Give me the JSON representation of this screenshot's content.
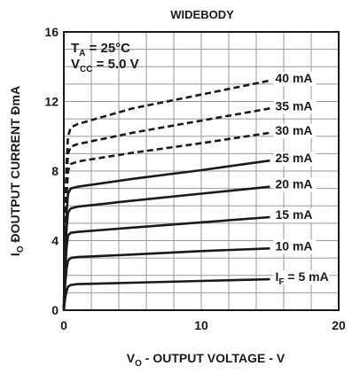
{
  "chart_data": {
    "type": "line",
    "title": "WIDEBODY",
    "xlabel": {
      "main": "V",
      "sub": "O",
      "rest": " -  OUTPUT VOLTAGE - V"
    },
    "ylabel": {
      "main": "I",
      "sub": "O",
      "rest": " ĐOUTPUT CURRENT ĐmA"
    },
    "xlim": [
      0,
      20
    ],
    "ylim": [
      0,
      16
    ],
    "xticks": [
      0,
      10,
      20
    ],
    "yticks": [
      0,
      4,
      8,
      12,
      16
    ],
    "grid": true,
    "conditions": [
      {
        "main": "T",
        "sub": "A",
        "rest": " = 25°C"
      },
      {
        "main": "V",
        "sub": "CC",
        "rest": " = 5.0 V"
      }
    ],
    "series": [
      {
        "name": "I",
        "label_sub": "F",
        "label_rest": " = 5 mA",
        "style": "solid",
        "x": [
          0,
          0.1,
          0.2,
          0.3,
          0.5,
          1,
          5,
          10,
          15
        ],
        "y": [
          0,
          0.7,
          1.1,
          1.35,
          1.45,
          1.5,
          1.58,
          1.68,
          1.78
        ]
      },
      {
        "name": "10 mA",
        "style": "solid",
        "x": [
          0,
          0.1,
          0.2,
          0.3,
          0.5,
          1,
          5,
          10,
          15
        ],
        "y": [
          0,
          1.5,
          2.4,
          2.85,
          3.0,
          3.05,
          3.2,
          3.4,
          3.55
        ]
      },
      {
        "name": "15 mA",
        "style": "solid",
        "x": [
          0,
          0.1,
          0.2,
          0.3,
          0.5,
          1,
          5,
          10,
          15
        ],
        "y": [
          0,
          2.3,
          3.6,
          4.3,
          4.45,
          4.5,
          4.75,
          5.05,
          5.35
        ]
      },
      {
        "name": "20 mA",
        "style": "solid",
        "x": [
          0,
          0.1,
          0.2,
          0.3,
          0.5,
          1,
          5,
          10,
          15
        ],
        "y": [
          0,
          3.0,
          4.7,
          5.6,
          5.85,
          5.95,
          6.3,
          6.7,
          7.1
        ]
      },
      {
        "name": "25 mA",
        "style": "solid",
        "x": [
          0,
          0.1,
          0.2,
          0.3,
          0.5,
          1,
          5,
          10,
          15
        ],
        "y": [
          0,
          3.6,
          5.6,
          6.7,
          7.0,
          7.1,
          7.55,
          8.05,
          8.6
        ]
      },
      {
        "name": "30 mA",
        "style": "dashed",
        "x": [
          0,
          0.1,
          0.2,
          0.3,
          0.5,
          1,
          5,
          10,
          15
        ],
        "y": [
          0,
          4.2,
          6.6,
          8.0,
          8.4,
          8.55,
          9.05,
          9.6,
          10.2
        ]
      },
      {
        "name": "35 mA",
        "style": "dashed",
        "x": [
          0,
          0.1,
          0.2,
          0.3,
          0.5,
          1,
          5,
          10,
          15
        ],
        "y": [
          0,
          4.8,
          7.6,
          9.0,
          9.4,
          9.55,
          10.2,
          10.9,
          11.6
        ]
      },
      {
        "name": "40 mA",
        "style": "dashed",
        "x": [
          0,
          0.1,
          0.2,
          0.3,
          0.5,
          1,
          5,
          10,
          15
        ],
        "y": [
          0,
          5.4,
          8.5,
          10.0,
          10.5,
          10.7,
          11.6,
          12.4,
          13.2
        ]
      }
    ]
  }
}
